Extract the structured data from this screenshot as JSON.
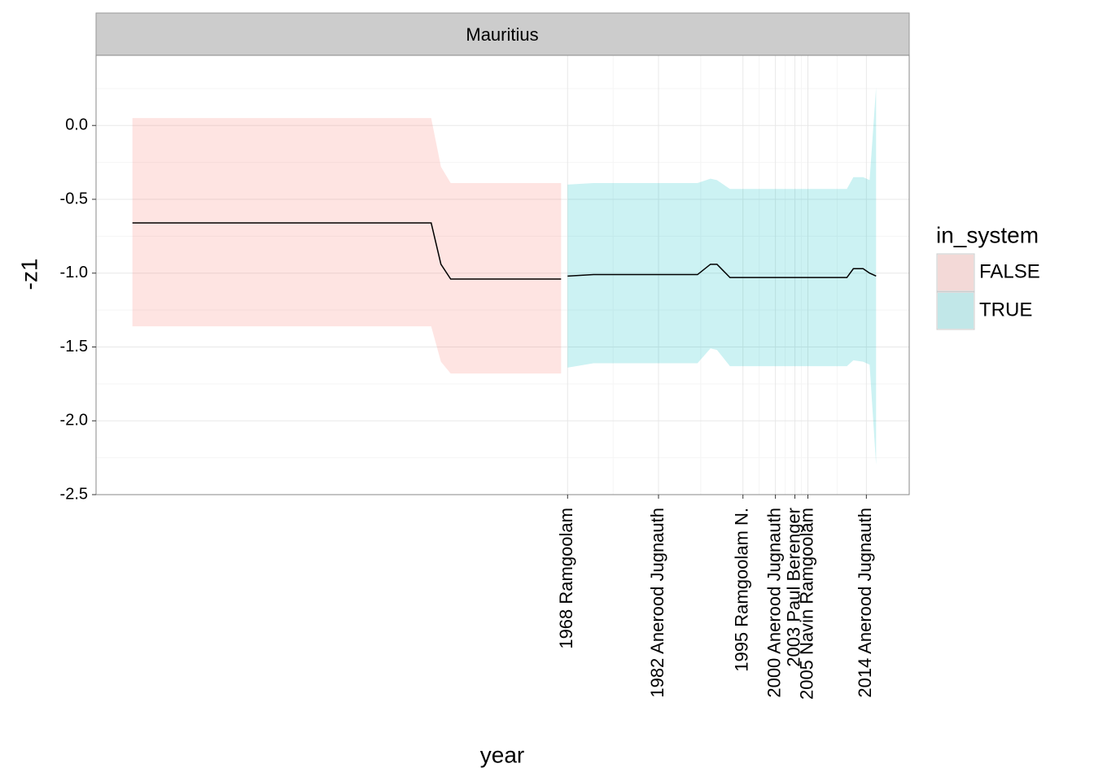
{
  "chart_data": {
    "type": "ribbon-line",
    "strip_label": "Mauritius",
    "x_label": "year",
    "y_label": "-z1",
    "legend_title": "in_system",
    "xlim": [
      1895.4,
      2020.6
    ],
    "ylim": [
      -2.5,
      0.475
    ],
    "xticks": [
      {
        "value": 1968,
        "label": "1968 Ramgoolam"
      },
      {
        "value": 1982,
        "label": "1982 Anerood Jugnauth"
      },
      {
        "value": 1995,
        "label": "1995 Ramgoolam N."
      },
      {
        "value": 2000,
        "label": "2000 Anerood Jugnauth"
      },
      {
        "value": 2003,
        "label": "2003 Paul Berenger"
      },
      {
        "value": 2005,
        "label": "2005 Navin Ramgoolam"
      },
      {
        "value": 2014,
        "label": "2014 Anerood Jugnauth"
      }
    ],
    "yticks": [
      {
        "value": 0,
        "label": "0.0"
      },
      -0.5,
      {
        "value": -1,
        "label": "-1.0"
      },
      -1.5,
      {
        "value": -2,
        "label": "-2.0"
      },
      -2.5
    ],
    "grid": true,
    "series": [
      {
        "name": "FALSE",
        "color": "#F8766D",
        "line_color": "#000000",
        "x": [
          1901,
          1947,
          1948.5,
          1950,
          1967
        ],
        "values": [
          -0.66,
          -0.66,
          -0.94,
          -1.04,
          -1.04
        ],
        "upper": [
          0.05,
          0.05,
          -0.28,
          -0.39,
          -0.39
        ],
        "lower": [
          -1.36,
          -1.36,
          -1.6,
          -1.68,
          -1.68
        ]
      },
      {
        "name": "TRUE",
        "color": "#00BFC4",
        "line_color": "#000000",
        "x": [
          1968,
          1972,
          1988,
          1990,
          1991,
          1993,
          2011,
          2012,
          2013.5,
          2014.5,
          2015.5
        ],
        "values": [
          -1.02,
          -1.01,
          -1.01,
          -0.94,
          -0.94,
          -1.03,
          -1.03,
          -0.97,
          -0.97,
          -1.0,
          -1.02
        ],
        "upper": [
          -0.4,
          -0.39,
          -0.39,
          -0.36,
          -0.37,
          -0.43,
          -0.43,
          -0.35,
          -0.35,
          -0.37,
          0.26
        ],
        "lower": [
          -1.64,
          -1.61,
          -1.61,
          -1.51,
          -1.52,
          -1.63,
          -1.63,
          -1.59,
          -1.6,
          -1.62,
          -2.3
        ]
      }
    ]
  }
}
